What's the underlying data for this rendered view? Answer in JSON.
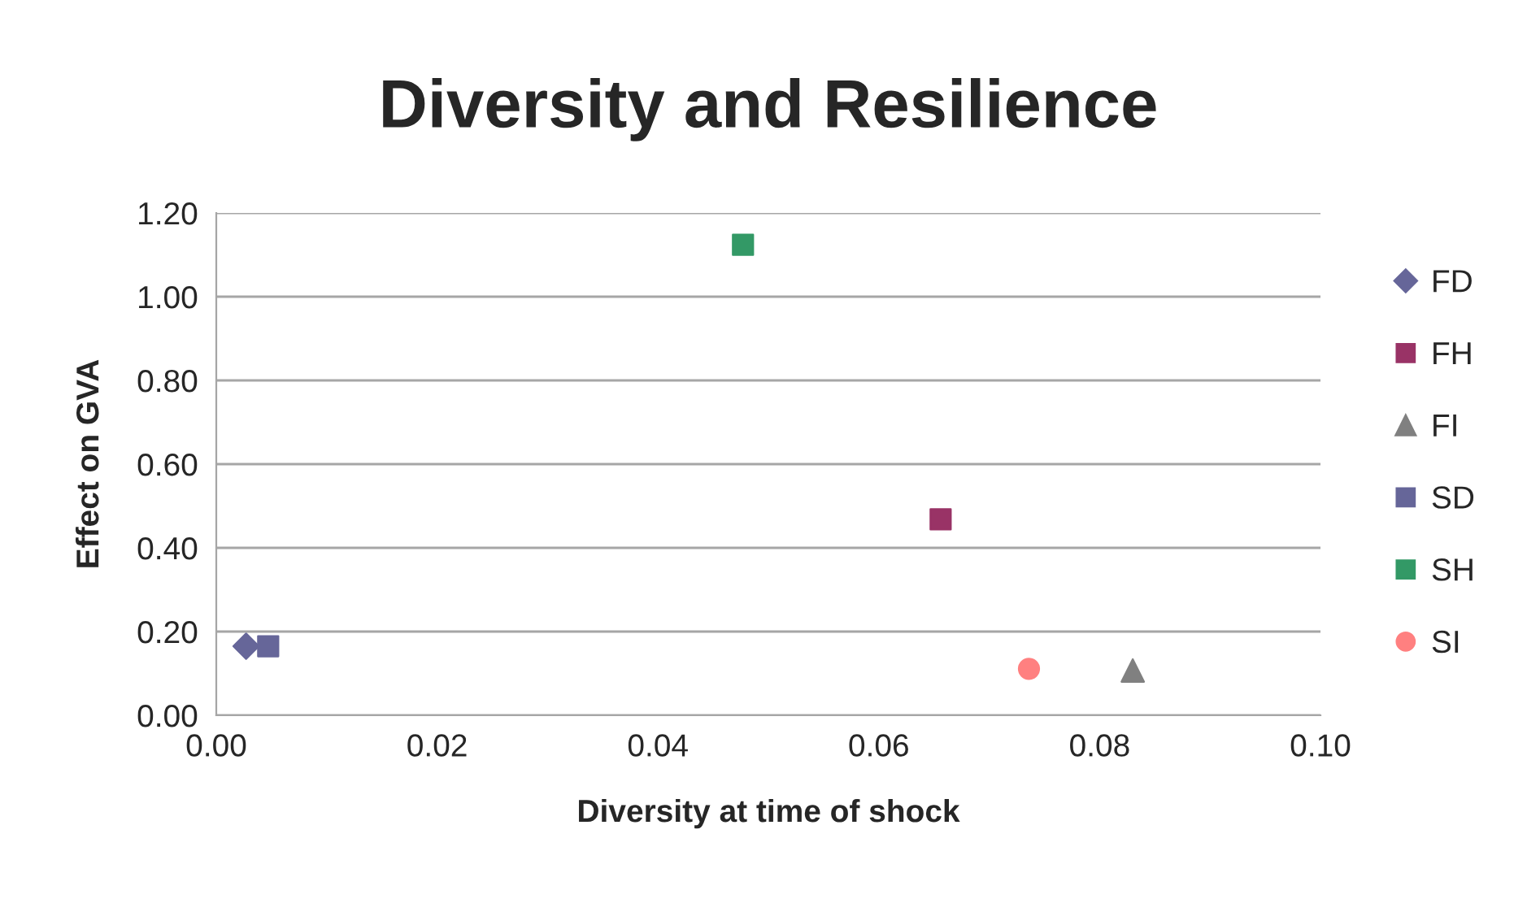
{
  "chart_data": {
    "type": "scatter",
    "title": "Diversity and Resilience",
    "xlabel": "Diversity at time of shock",
    "ylabel": "Effect on GVA",
    "xlim": [
      0,
      0.1
    ],
    "ylim": [
      0,
      1.2
    ],
    "xticks": [
      {
        "value": 0,
        "label": "0.00"
      },
      {
        "value": 0.02,
        "label": "0.02"
      },
      {
        "value": 0.04,
        "label": "0.04"
      },
      {
        "value": 0.06,
        "label": "0.06"
      },
      {
        "value": 0.08,
        "label": "0.08"
      },
      {
        "value": 0.1,
        "label": "0.10"
      }
    ],
    "yticks": [
      {
        "value": 0,
        "label": "0.00"
      },
      {
        "value": 0.2,
        "label": "0.20"
      },
      {
        "value": 0.4,
        "label": "0.40"
      },
      {
        "value": 0.6,
        "label": "0.60"
      },
      {
        "value": 0.8,
        "label": "0.80"
      },
      {
        "value": 1.0,
        "label": "1.00"
      },
      {
        "value": 1.2,
        "label": "1.20"
      }
    ],
    "grid": "y",
    "legend": "right",
    "series": [
      {
        "name": "FD",
        "color": "#666699",
        "marker": "diamond",
        "x": [
          0.0027
        ],
        "values": [
          0.165
        ]
      },
      {
        "name": "FH",
        "color": "#993366",
        "marker": "square",
        "x": [
          0.0656
        ],
        "values": [
          0.468
        ]
      },
      {
        "name": "FI",
        "color": "#808080",
        "marker": "triangle",
        "x": [
          0.083
        ],
        "values": [
          0.107
        ]
      },
      {
        "name": "SD",
        "color": "#666699",
        "marker": "square",
        "x": [
          0.0047
        ],
        "values": [
          0.165
        ]
      },
      {
        "name": "SH",
        "color": "#339966",
        "marker": "square",
        "x": [
          0.0477
        ],
        "values": [
          1.124
        ]
      },
      {
        "name": "SI",
        "color": "#ff8080",
        "marker": "circle",
        "x": [
          0.0736
        ],
        "values": [
          0.111
        ]
      }
    ]
  }
}
